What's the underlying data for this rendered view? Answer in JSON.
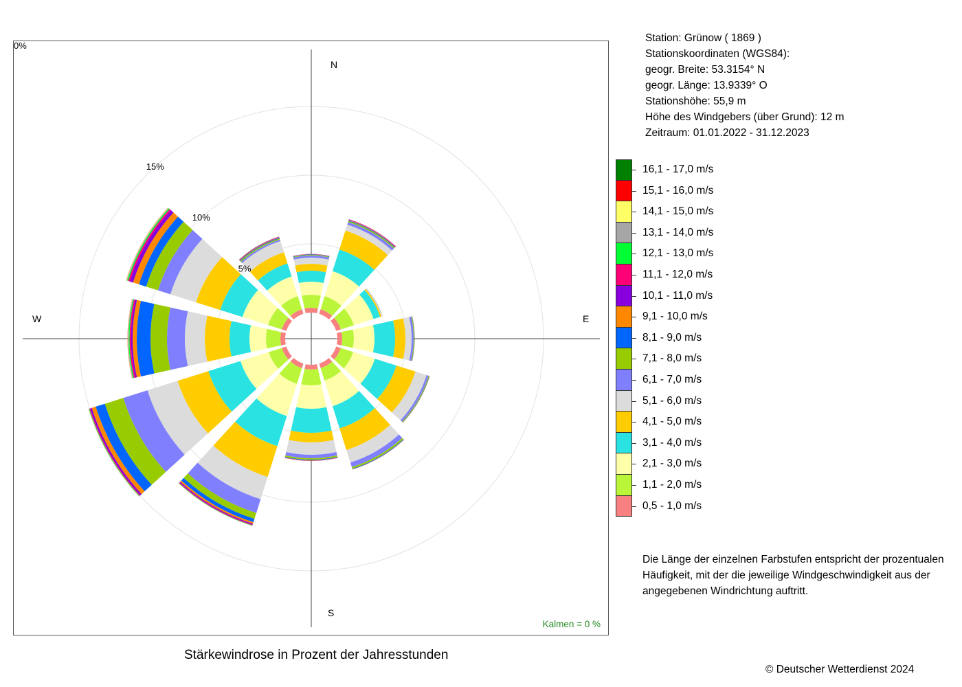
{
  "station": {
    "lines": [
      "Station:  Grünow  ( 1869 )",
      "Stationskoordinaten (WGS84):",
      "geogr. Breite: 53.3154° N",
      "geogr. Länge: 13.9339° O",
      "Stationshöhe: 55,9 m",
      "Höhe des Windgebers (über Grund): 12 m",
      "Zeitraum: 01.01.2022 - 31.12.2023"
    ]
  },
  "legend": {
    "items": [
      {
        "label": "16,1 - 17,0 m/s",
        "color": "#008000"
      },
      {
        "label": "15,1 - 16,0 m/s",
        "color": "#ff0000"
      },
      {
        "label": "14,1 - 15,0 m/s",
        "color": "#ffff66"
      },
      {
        "label": "13,1 - 14,0 m/s",
        "color": "#a6a6a6"
      },
      {
        "label": "12,1 - 13,0 m/s",
        "color": "#00ff33"
      },
      {
        "label": "11,1 - 12,0 m/s",
        "color": "#ff0077"
      },
      {
        "label": "10,1 - 11,0 m/s",
        "color": "#8800dd"
      },
      {
        "label": "9,1 - 10,0 m/s",
        "color": "#ff8800"
      },
      {
        "label": "8,1 - 9,0 m/s",
        "color": "#0066ff"
      },
      {
        "label": "7,1 - 8,0 m/s",
        "color": "#99cc00"
      },
      {
        "label": "6,1 - 7,0 m/s",
        "color": "#8080ff"
      },
      {
        "label": "5,1 - 6,0 m/s",
        "color": "#dcdcdc"
      },
      {
        "label": "4,1 - 5,0 m/s",
        "color": "#ffcc00"
      },
      {
        "label": "3,1 - 4,0 m/s",
        "color": "#2ae2e2"
      },
      {
        "label": "2,1 - 3,0 m/s",
        "color": "#ffffaa"
      },
      {
        "label": "1,1 - 2,0 m/s",
        "color": "#bbf53a"
      },
      {
        "label": "0,5 - 1,0 m/s",
        "color": "#f88080"
      }
    ]
  },
  "note": "Die Länge der einzelnen Farbstufen entspricht der prozentualen Häufigkeit, mit der die jeweilige Windgeschwindigkeit aus der angegebenen Windrichtung auftritt.",
  "title": "Stärkewindrose in Prozent der Jahresstunden",
  "copyright": "© Deutscher Wetterdienst  2024",
  "calms": "Kalmen  =  0 %",
  "calms_color": "#228b22",
  "chart_data": {
    "type": "windrose",
    "unit": "%",
    "direction_labels": {
      "N": "N",
      "E": "E",
      "S": "S",
      "W": "W"
    },
    "ring_labels": [
      "0%",
      "5%",
      "10%",
      "15%"
    ],
    "ring_values": [
      0,
      5,
      10,
      15
    ],
    "speed_classes": [
      "0,5 - 1,0 m/s",
      "1,1 - 2,0 m/s",
      "2,1 - 3,0 m/s",
      "3,1 - 4,0 m/s",
      "4,1 - 5,0 m/s",
      "5,1 - 6,0 m/s",
      "6,1 - 7,0 m/s",
      "7,1 - 8,0 m/s",
      "8,1 - 9,0 m/s",
      "9,1 - 10,0 m/s",
      "10,1 - 11,0 m/s",
      "11,1 - 12,0 m/s",
      "12,1 - 13,0 m/s",
      "13,1 - 14,0 m/s",
      "14,1 - 15,0 m/s",
      "15,1 - 16,0 m/s",
      "16,1 - 17,0 m/s"
    ],
    "sectors": [
      {
        "direction_deg": 0,
        "values": [
          0.35,
          0.95,
          0.95,
          0.8,
          0.5,
          0.45,
          0.15,
          0.05,
          0.03,
          0.02,
          0.01,
          0.01,
          0,
          0,
          0,
          0,
          0
        ]
      },
      {
        "direction_deg": 30,
        "values": [
          0.35,
          1.0,
          1.9,
          1.65,
          1.45,
          0.45,
          0.2,
          0.08,
          0.05,
          0.04,
          0.03,
          0.02,
          0,
          0,
          0,
          0,
          0
        ]
      },
      {
        "direction_deg": 60,
        "values": [
          0.35,
          1.0,
          1.5,
          0.5,
          0.1,
          0.05,
          0.02,
          0.01,
          0,
          0,
          0,
          0,
          0,
          0,
          0,
          0,
          0
        ]
      },
      {
        "direction_deg": 90,
        "values": [
          0.35,
          0.85,
          1.5,
          1.5,
          0.75,
          0.45,
          0.15,
          0.05,
          0.02,
          0.01,
          0,
          0,
          0,
          0,
          0,
          0,
          0
        ]
      },
      {
        "direction_deg": 120,
        "values": [
          0.35,
          0.95,
          1.65,
          1.65,
          1.45,
          0.85,
          0.15,
          0.05,
          0.03,
          0.02,
          0,
          0,
          0,
          0,
          0,
          0,
          0
        ]
      },
      {
        "direction_deg": 150,
        "values": [
          0.35,
          0.95,
          1.95,
          1.7,
          1.65,
          0.95,
          0.35,
          0.12,
          0.04,
          0.02,
          0.01,
          0,
          0,
          0,
          0,
          0,
          0
        ]
      },
      {
        "direction_deg": 180,
        "values": [
          0.35,
          1.15,
          1.7,
          1.75,
          0.7,
          0.9,
          0.25,
          0.1,
          0.05,
          0.03,
          0.01,
          0.01,
          0,
          0,
          0,
          0,
          0
        ]
      },
      {
        "direction_deg": 210,
        "values": [
          0.35,
          1.2,
          2.45,
          2.3,
          2.35,
          1.7,
          1.05,
          0.45,
          0.25,
          0.12,
          0.07,
          0.05,
          0.03,
          0.02,
          0.01,
          0,
          0
        ]
      },
      {
        "direction_deg": 240,
        "values": [
          0.35,
          1.0,
          2.15,
          2.45,
          2.35,
          2.3,
          1.85,
          1.4,
          0.7,
          0.3,
          0.12,
          0.06,
          0.04,
          0.03,
          0.02,
          0,
          0
        ]
      },
      {
        "direction_deg": 270,
        "values": [
          0.35,
          1.05,
          1.2,
          1.45,
          1.8,
          1.45,
          1.3,
          1.2,
          1.0,
          0.3,
          0.12,
          0.1,
          0.07,
          0.05,
          0.02,
          0.01,
          0
        ]
      },
      {
        "direction_deg": 300,
        "values": [
          0.35,
          1.05,
          1.95,
          1.7,
          1.85,
          1.95,
          0.95,
          0.9,
          0.55,
          0.45,
          0.25,
          0.12,
          0.08,
          0.05,
          0.03,
          0.01,
          0
        ]
      },
      {
        "direction_deg": 330,
        "values": [
          0.35,
          1.0,
          1.5,
          1.0,
          0.85,
          0.85,
          0.12,
          0.08,
          0.05,
          0.04,
          0.03,
          0.02,
          0.01,
          0,
          0,
          0,
          0
        ]
      }
    ]
  }
}
